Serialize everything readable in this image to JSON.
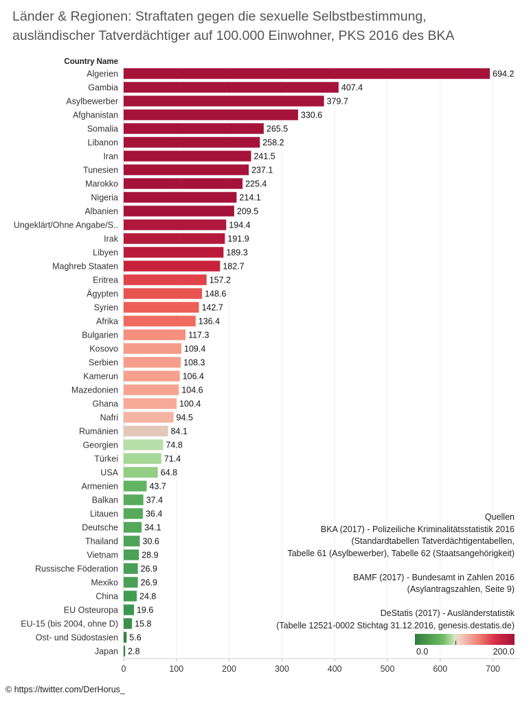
{
  "title_lines": [
    "Länder & Regionen: Straftaten gegen die sexuelle Selbstbestimmung,",
    "ausländischer Tatverdächtiger auf 100.000 Einwohner, PKS 2016 des BKA"
  ],
  "chart_data": {
    "type": "bar",
    "orientation": "horizontal",
    "title": "Länder & Regionen: Straftaten gegen die sexuelle Selbstbestimmung, ausländischer Tatverdächtiger auf 100.000 Einwohner, PKS 2016 des BKA",
    "category_header": "Country Name",
    "categories": [
      "Algerien",
      "Gambia",
      "Asylbewerber",
      "Afghanistan",
      "Somalia",
      "Libanon",
      "Iran",
      "Tunesien",
      "Marokko",
      "Nigeria",
      "Albanien",
      "Ungeklärt/Ohne Angabe/S..",
      "Irak",
      "Libyen",
      "Maghreb Staaten",
      "Eritrea",
      "Ägypten",
      "Syrien",
      "Afrika",
      "Bulgarien",
      "Kosovo",
      "Serbien",
      "Kamerun",
      "Mazedonien",
      "Ghana",
      "Nafri",
      "Rumänien",
      "Georgien",
      "Türkei",
      "USA",
      "Armenien",
      "Balkan",
      "Litauen",
      "Deutsche",
      "Thailand",
      "Vietnam",
      "Russische Föderation",
      "Mexiko",
      "China",
      "EU Osteuropa",
      "EU-15 (bis 2004, ohne D)",
      "Ost- und Südostasien",
      "Japan"
    ],
    "values": [
      694.2,
      407.4,
      379.7,
      330.6,
      265.5,
      258.2,
      241.5,
      237.1,
      225.4,
      214.1,
      209.5,
      194.4,
      191.9,
      189.3,
      182.7,
      157.2,
      148.6,
      142.7,
      136.4,
      117.3,
      109.4,
      108.3,
      106.4,
      104.6,
      100.4,
      94.5,
      84.1,
      74.8,
      71.4,
      64.8,
      43.7,
      37.4,
      36.4,
      34.1,
      30.6,
      28.9,
      26.9,
      26.9,
      24.8,
      19.6,
      15.8,
      5.6,
      2.8
    ],
    "value_labels": [
      "694.2",
      "407.4",
      "379.7",
      "330.6",
      "265.5",
      "258.2",
      "241.5",
      "237.1",
      "225.4",
      "214.1",
      "209.5",
      "194.4",
      "191.9",
      "189.3",
      "182.7",
      "157.2",
      "148.6",
      "142.7",
      "136.4",
      "117.3",
      "109.4",
      "108.3",
      "106.4",
      "104.6",
      "100.4",
      "94.5",
      "84.1",
      "74.8",
      "71.4",
      "64.8",
      "43.7",
      "37.4",
      "36.4",
      "34.1",
      "30.6",
      "28.9",
      "26.9",
      "26.9",
      "24.8",
      "19.6",
      "15.8",
      "5.6",
      "2.8"
    ],
    "xlim": [
      0,
      750
    ],
    "xticks": [
      "0",
      "100",
      "200",
      "300",
      "400",
      "500",
      "600",
      "700"
    ],
    "xtick_values": [
      0,
      100,
      200,
      300,
      400,
      500,
      600,
      700
    ],
    "color_scale": {
      "type": "diverging",
      "low": 0.0,
      "high": 200.0,
      "low_label": "0.0",
      "high_label": "200.0",
      "colors": [
        "#2e7d3e",
        "#6dbb63",
        "#cfe8c2",
        "#f6cfc0",
        "#f08a7a",
        "#d92f45",
        "#a3123a"
      ]
    },
    "grid": true
  },
  "legend": {
    "low_label": "0.0",
    "high_label": "200.0"
  },
  "sources": [
    "Quellen",
    "BKA (2017) - Polizeiliche Kriminalitätsstatistik 2016",
    "(Standardtabellen Tatverdächtigentabellen,",
    "Tabelle 61 (Asylbewerber), Tabelle 62 (Staatsangehörigkeit)",
    "",
    "BAMF (2017) - Bundesamt in Zahlen 2016",
    "(Asylantragszahlen, Seite 9)",
    "",
    "DeStatis (2017) -  Ausländerstatistik",
    "(Tabelle 12521-0002 Stichtag 31.12.2016,  genesis.destatis.de)"
  ],
  "credit": "© https://twitter.com/DerHorus_"
}
